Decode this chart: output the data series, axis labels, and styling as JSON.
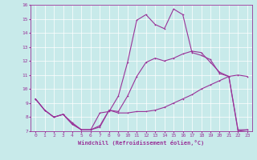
{
  "xlabel": "Windchill (Refroidissement éolien,°C)",
  "bg_color": "#c8eaea",
  "line_color": "#993399",
  "grid_color": "#ffffff",
  "xlim": [
    -0.5,
    23.5
  ],
  "ylim": [
    7,
    16
  ],
  "yticks": [
    7,
    8,
    9,
    10,
    11,
    12,
    13,
    14,
    15,
    16
  ],
  "xticks": [
    0,
    1,
    2,
    3,
    4,
    5,
    6,
    7,
    8,
    9,
    10,
    11,
    12,
    13,
    14,
    15,
    16,
    17,
    18,
    19,
    20,
    21,
    22,
    23
  ],
  "line1_x": [
    0,
    1,
    2,
    3,
    4,
    5,
    6,
    7,
    8,
    9,
    10,
    11,
    12,
    13,
    14,
    15,
    16,
    17,
    18,
    19,
    20,
    21,
    22,
    23
  ],
  "line1_y": [
    9.3,
    8.5,
    8.0,
    8.2,
    7.5,
    7.1,
    7.1,
    7.3,
    8.5,
    8.3,
    8.3,
    8.4,
    8.4,
    8.5,
    8.7,
    9.0,
    9.3,
    9.6,
    10.0,
    10.3,
    10.6,
    10.9,
    11.0,
    10.9
  ],
  "line2_x": [
    0,
    1,
    2,
    3,
    4,
    5,
    6,
    7,
    8,
    9,
    10,
    11,
    12,
    13,
    14,
    15,
    16,
    17,
    18,
    19,
    20,
    21,
    22,
    23
  ],
  "line2_y": [
    9.3,
    8.5,
    8.0,
    8.2,
    7.6,
    7.1,
    7.1,
    8.3,
    8.4,
    9.5,
    11.9,
    14.9,
    15.3,
    14.6,
    14.3,
    15.7,
    15.3,
    12.6,
    12.4,
    12.1,
    11.1,
    10.9,
    7.0,
    7.1
  ],
  "line3_x": [
    0,
    1,
    2,
    3,
    4,
    5,
    6,
    7,
    8,
    9,
    10,
    11,
    12,
    13,
    14,
    15,
    16,
    17,
    18,
    19,
    20,
    21,
    22,
    23
  ],
  "line3_y": [
    9.3,
    8.5,
    8.0,
    8.2,
    7.5,
    7.1,
    7.1,
    7.4,
    8.5,
    8.4,
    9.5,
    10.9,
    11.9,
    12.2,
    12.0,
    12.2,
    12.5,
    12.7,
    12.6,
    11.9,
    11.2,
    10.9,
    7.1,
    7.1
  ],
  "tick_fontsize": 4.5,
  "xlabel_fontsize": 5.0,
  "lw": 0.8,
  "ms": 2.0
}
